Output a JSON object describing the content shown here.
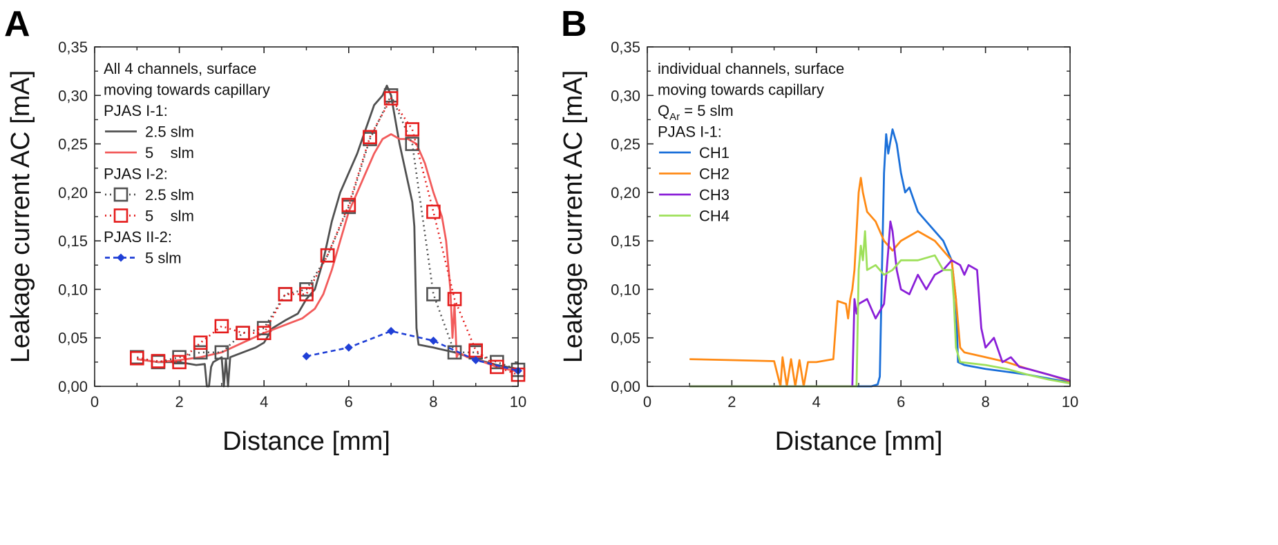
{
  "chart_data": [
    {
      "panel": "A",
      "type": "line",
      "xlabel": "Distance [mm]",
      "ylabel": "Leakage current AC [mA]",
      "xlim": [
        0,
        10
      ],
      "ylim": [
        0,
        0.35
      ],
      "xticks": [
        "0",
        "2",
        "4",
        "6",
        "8",
        "10"
      ],
      "yticks": [
        "0,00",
        "0,05",
        "0,10",
        "0,15",
        "0,20",
        "0,25",
        "0,30",
        "0,35"
      ],
      "grid": false,
      "legend_position": "top-left",
      "legend": [
        {
          "kind": "text",
          "text": "All 4 channels, surface"
        },
        {
          "kind": "text",
          "text": "moving towards capillary"
        },
        {
          "kind": "text",
          "text": "PJAS I-1:"
        },
        {
          "kind": "series",
          "text": "2.5 slm",
          "series": "a_i1_25"
        },
        {
          "kind": "series",
          "text": "5    slm",
          "series": "a_i1_5"
        },
        {
          "kind": "text",
          "text": "PJAS I-2:"
        },
        {
          "kind": "series",
          "text": "2.5 slm",
          "series": "a_i2_25"
        },
        {
          "kind": "series",
          "text": "5    slm",
          "series": "a_i2_5"
        },
        {
          "kind": "text",
          "text": "PJAS II-2:"
        },
        {
          "kind": "series",
          "text": "5 slm",
          "series": "a_ii2_5"
        }
      ],
      "series": [
        {
          "id": "a_i1_25",
          "color": "#505050",
          "style": "solid",
          "marker": "none",
          "x": [
            1.0,
            1.5,
            2.0,
            2.4,
            2.6,
            2.65,
            2.7,
            2.75,
            2.8,
            3.0,
            3.05,
            3.1,
            3.15,
            3.2,
            3.5,
            3.8,
            4.0,
            4.2,
            4.5,
            4.8,
            5.0,
            5.2,
            5.4,
            5.5,
            5.6,
            5.8,
            6.0,
            6.2,
            6.4,
            6.6,
            6.8,
            6.9,
            7.0,
            7.1,
            7.2,
            7.35,
            7.5,
            7.55,
            7.6,
            7.65,
            8.0,
            8.5,
            9.0,
            9.5,
            10.0
          ],
          "y": [
            0.028,
            0.025,
            0.025,
            0.022,
            0.023,
            0.0,
            0.0,
            0.02,
            0.025,
            0.03,
            0.0,
            0.028,
            0.0,
            0.03,
            0.035,
            0.04,
            0.045,
            0.06,
            0.068,
            0.075,
            0.09,
            0.1,
            0.13,
            0.15,
            0.17,
            0.2,
            0.22,
            0.24,
            0.265,
            0.29,
            0.3,
            0.31,
            0.3,
            0.275,
            0.25,
            0.22,
            0.19,
            0.165,
            0.06,
            0.043,
            0.04,
            0.035,
            0.028,
            0.022,
            0.018
          ]
        },
        {
          "id": "a_i1_5",
          "color": "#f25b5b",
          "style": "solid",
          "marker": "none",
          "x": [
            1.0,
            1.5,
            2.0,
            2.5,
            3.0,
            3.5,
            4.0,
            4.3,
            4.6,
            4.9,
            5.2,
            5.4,
            5.6,
            5.8,
            6.0,
            6.2,
            6.4,
            6.6,
            6.8,
            7.0,
            7.2,
            7.4,
            7.6,
            7.8,
            8.0,
            8.2,
            8.3,
            8.4,
            8.45,
            8.5,
            8.55,
            8.6,
            8.8,
            9.0,
            9.5,
            10.0
          ],
          "y": [
            0.028,
            0.025,
            0.027,
            0.03,
            0.035,
            0.045,
            0.055,
            0.06,
            0.065,
            0.07,
            0.08,
            0.095,
            0.12,
            0.15,
            0.18,
            0.2,
            0.22,
            0.24,
            0.255,
            0.26,
            0.255,
            0.255,
            0.25,
            0.23,
            0.2,
            0.175,
            0.15,
            0.1,
            0.05,
            0.085,
            0.03,
            0.035,
            0.03,
            0.028,
            0.02,
            0.015
          ]
        },
        {
          "id": "a_i2_25",
          "color": "#505050",
          "style": "dotted",
          "marker": "open-square",
          "x": [
            1.0,
            1.5,
            2.0,
            2.5,
            3.0,
            3.5,
            4.0,
            4.5,
            5.0,
            5.5,
            6.0,
            6.5,
            7.0,
            7.5,
            8.0,
            8.5,
            9.0,
            9.5,
            10.0
          ],
          "y": [
            0.03,
            0.025,
            0.03,
            0.035,
            0.035,
            0.055,
            0.06,
            0.095,
            0.1,
            0.135,
            0.185,
            0.255,
            0.3,
            0.25,
            0.095,
            0.035,
            0.035,
            0.025,
            0.017
          ]
        },
        {
          "id": "a_i2_5",
          "color": "#e41c1c",
          "style": "dotted",
          "marker": "open-square",
          "x": [
            1.0,
            1.5,
            2.0,
            2.5,
            3.0,
            3.5,
            4.0,
            4.5,
            5.0,
            5.5,
            6.0,
            6.5,
            7.0,
            7.5,
            8.0,
            8.5,
            9.0,
            9.5,
            10.0
          ],
          "y": [
            0.029,
            0.026,
            0.025,
            0.045,
            0.062,
            0.055,
            0.055,
            0.095,
            0.095,
            0.135,
            0.187,
            0.257,
            0.297,
            0.265,
            0.18,
            0.09,
            0.037,
            0.02,
            0.012
          ]
        },
        {
          "id": "a_ii2_5",
          "color": "#1f3fd6",
          "style": "dashed",
          "marker": "filled-diamond",
          "x": [
            5.0,
            6.0,
            7.0,
            8.0,
            9.0,
            10.0
          ],
          "y": [
            0.031,
            0.04,
            0.057,
            0.047,
            0.027,
            0.016
          ]
        }
      ]
    },
    {
      "panel": "B",
      "type": "line",
      "xlabel": "Distance [mm]",
      "ylabel": "Leakage current AC [mA]",
      "xlim": [
        0,
        10
      ],
      "ylim": [
        0,
        0.35
      ],
      "xticks": [
        "0",
        "2",
        "4",
        "6",
        "8",
        "10"
      ],
      "yticks": [
        "0,00",
        "0,05",
        "0,10",
        "0,15",
        "0,20",
        "0,25",
        "0,30",
        "0,35"
      ],
      "grid": false,
      "legend_position": "top-left",
      "legend": [
        {
          "kind": "text",
          "text": "individual channels, surface"
        },
        {
          "kind": "text",
          "text": "moving towards capillary"
        },
        {
          "kind": "text",
          "text": "Q",
          "sub": "Ar",
          "suffix": " = 5 slm"
        },
        {
          "kind": "text",
          "text": "PJAS I-1:"
        },
        {
          "kind": "series",
          "text": "CH1",
          "series": "b_ch1"
        },
        {
          "kind": "series",
          "text": "CH2",
          "series": "b_ch2"
        },
        {
          "kind": "series",
          "text": "CH3",
          "series": "b_ch3"
        },
        {
          "kind": "series",
          "text": "CH4",
          "series": "b_ch4"
        }
      ],
      "series": [
        {
          "id": "b_ch1",
          "color": "#1a6fd9",
          "style": "solid",
          "marker": "none",
          "x": [
            1.0,
            5.3,
            5.45,
            5.5,
            5.55,
            5.6,
            5.65,
            5.7,
            5.8,
            5.9,
            6.0,
            6.1,
            6.2,
            6.4,
            6.6,
            6.8,
            7.0,
            7.2,
            7.3,
            7.35,
            7.5,
            8.0,
            8.5,
            9.0,
            9.5,
            10.0
          ],
          "y": [
            0.0,
            0.0,
            0.002,
            0.01,
            0.12,
            0.22,
            0.26,
            0.24,
            0.265,
            0.25,
            0.22,
            0.2,
            0.205,
            0.18,
            0.17,
            0.16,
            0.15,
            0.13,
            0.09,
            0.025,
            0.022,
            0.018,
            0.015,
            0.012,
            0.008,
            0.004
          ]
        },
        {
          "id": "b_ch2",
          "color": "#ff8a14",
          "style": "solid",
          "marker": "none",
          "x": [
            1.0,
            2.0,
            3.0,
            3.15,
            3.2,
            3.3,
            3.4,
            3.5,
            3.6,
            3.7,
            3.8,
            4.0,
            4.4,
            4.5,
            4.7,
            4.75,
            4.8,
            4.85,
            4.9,
            5.0,
            5.05,
            5.1,
            5.2,
            5.4,
            5.6,
            5.8,
            6.0,
            6.4,
            6.8,
            7.0,
            7.2,
            7.3,
            7.4,
            7.5,
            8.0,
            8.5,
            9.0,
            9.5,
            10.0
          ],
          "y": [
            0.028,
            0.027,
            0.026,
            0.0,
            0.03,
            0.0,
            0.028,
            0.0,
            0.027,
            0.0,
            0.025,
            0.025,
            0.028,
            0.088,
            0.085,
            0.07,
            0.09,
            0.1,
            0.12,
            0.2,
            0.215,
            0.2,
            0.18,
            0.17,
            0.15,
            0.14,
            0.15,
            0.16,
            0.15,
            0.14,
            0.13,
            0.09,
            0.04,
            0.035,
            0.03,
            0.025,
            0.018,
            0.012,
            0.005
          ]
        },
        {
          "id": "b_ch3",
          "color": "#8a1fd8",
          "style": "solid",
          "marker": "none",
          "x": [
            1.0,
            4.85,
            4.9,
            4.95,
            5.0,
            5.2,
            5.4,
            5.6,
            5.7,
            5.75,
            5.8,
            5.9,
            6.0,
            6.2,
            6.4,
            6.6,
            6.8,
            7.0,
            7.2,
            7.4,
            7.5,
            7.6,
            7.8,
            7.9,
            8.0,
            8.2,
            8.4,
            8.6,
            8.8,
            9.0,
            9.5,
            10.0
          ],
          "y": [
            0.0,
            0.0,
            0.09,
            0.075,
            0.085,
            0.09,
            0.07,
            0.085,
            0.14,
            0.17,
            0.16,
            0.12,
            0.1,
            0.095,
            0.115,
            0.1,
            0.115,
            0.12,
            0.13,
            0.125,
            0.115,
            0.125,
            0.12,
            0.06,
            0.04,
            0.05,
            0.025,
            0.03,
            0.02,
            0.018,
            0.012,
            0.006
          ]
        },
        {
          "id": "b_ch4",
          "color": "#9ee05a",
          "style": "solid",
          "marker": "none",
          "x": [
            1.0,
            4.95,
            5.0,
            5.05,
            5.1,
            5.15,
            5.2,
            5.4,
            5.6,
            5.8,
            6.0,
            6.4,
            6.8,
            7.0,
            7.2,
            7.25,
            7.3,
            7.4,
            8.0,
            8.5,
            9.0,
            9.5,
            10.0
          ],
          "y": [
            0.0,
            0.0,
            0.12,
            0.145,
            0.13,
            0.16,
            0.12,
            0.125,
            0.115,
            0.12,
            0.13,
            0.13,
            0.135,
            0.12,
            0.12,
            0.09,
            0.04,
            0.025,
            0.022,
            0.018,
            0.012,
            0.007,
            0.003
          ]
        }
      ]
    }
  ]
}
